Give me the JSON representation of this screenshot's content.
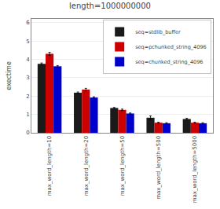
{
  "chart_data": {
    "type": "bar",
    "title": "length=1000000000",
    "ylabel": "exectime",
    "categories": [
      "max_word_length=10",
      "max_word_length=20",
      "max_word_length=50",
      "max_word_length=500",
      "max_word_length=5000"
    ],
    "series": [
      {
        "name": "seq=stdlib_buffer",
        "color": "#1a1a1a",
        "values": [
          3.75,
          2.18,
          1.35,
          0.82,
          0.75
        ],
        "errors": [
          0.05,
          0.04,
          0.03,
          0.1,
          0.04
        ]
      },
      {
        "name": "seq=pchunked_string_4096",
        "color": "#cc0000",
        "values": [
          4.3,
          2.35,
          1.25,
          0.55,
          0.55
        ],
        "errors": [
          0.08,
          0.07,
          0.04,
          0.03,
          0.03
        ]
      },
      {
        "name": "seq=chunked_string_4096",
        "color": "#0000cc",
        "values": [
          3.62,
          1.92,
          1.05,
          0.52,
          0.52
        ],
        "errors": [
          0.04,
          0.04,
          0.03,
          0.03,
          0.03
        ]
      }
    ],
    "ylim": [
      0,
      6.2
    ],
    "yticks": [
      0,
      1,
      2,
      3,
      4,
      5,
      6
    ],
    "grid": true,
    "legend": "upper right"
  }
}
